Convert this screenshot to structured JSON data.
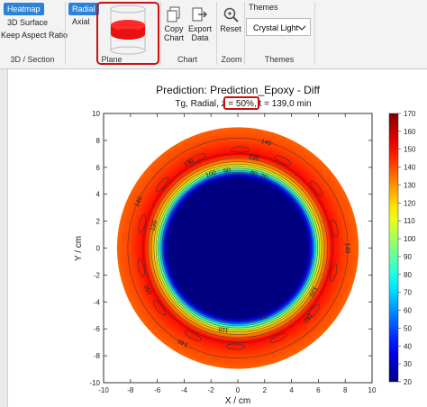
{
  "ribbon": {
    "section_3d": {
      "heatmap": "Heatmap",
      "surface": "3D Surface",
      "aspect": "Keep Aspect Ratio",
      "label": "3D / Section"
    },
    "plane": {
      "radial": "Radial",
      "axial": "Axial",
      "label": "Plane"
    },
    "chart": {
      "copy_line1": "Copy",
      "copy_line2": "Chart",
      "export_line1": "Export",
      "export_line2": "Data",
      "label": "Chart"
    },
    "zoom": {
      "reset": "Reset",
      "label": "Zoom"
    },
    "themes": {
      "title": "Themes",
      "selected": "Crystal Light",
      "label": "Themes"
    }
  },
  "chart": {
    "title": "Prediction: Prediction_Epoxy - Diff",
    "subtitle_prefix": "Tg, Radial, ",
    "subtitle_z": "z = 50%,",
    "subtitle_suffix": " t = 139,0 min",
    "xlabel": "X / cm",
    "ylabel": "Y / cm"
  },
  "chart_data": {
    "type": "heatmap",
    "title": "Prediction: Prediction_Epoxy - Diff",
    "subtitle": "Tg, Radial, z = 50%, t = 139,0 min",
    "xlabel": "X / cm",
    "ylabel": "Y / cm",
    "xlim": [
      -10,
      10
    ],
    "ylim": [
      -10,
      10
    ],
    "x_ticks": [
      "-10",
      "-8",
      "-6",
      "-4",
      "-2",
      "0",
      "2",
      "4",
      "6",
      "8",
      "10"
    ],
    "y_ticks": [
      "10",
      "8",
      "6",
      "4",
      "2",
      "0",
      "-2",
      "-4",
      "-6",
      "-8",
      "-10"
    ],
    "colorbar_range": [
      20,
      170
    ],
    "colorbar_ticks": [
      "170",
      "160",
      "150",
      "140",
      "130",
      "120",
      "110",
      "100",
      "90",
      "80",
      "70",
      "60",
      "50",
      "40",
      "30",
      "20"
    ],
    "domain_radius_cm": 9,
    "radial_profile": {
      "r": [
        0,
        5.2,
        5.5,
        5.8,
        6.1,
        6.4,
        6.7,
        7.0,
        7.3,
        8.0,
        9.0
      ],
      "value": [
        20,
        20,
        40,
        80,
        110,
        128,
        140,
        152,
        148,
        142,
        137
      ]
    },
    "contour_labels": [
      "140",
      "150",
      "130",
      "120",
      "110",
      "100",
      "90",
      "80",
      "70",
      "50"
    ],
    "colors": {
      "low": "#0a14c8",
      "high": "#c81e14",
      "contour": "#333333"
    }
  }
}
